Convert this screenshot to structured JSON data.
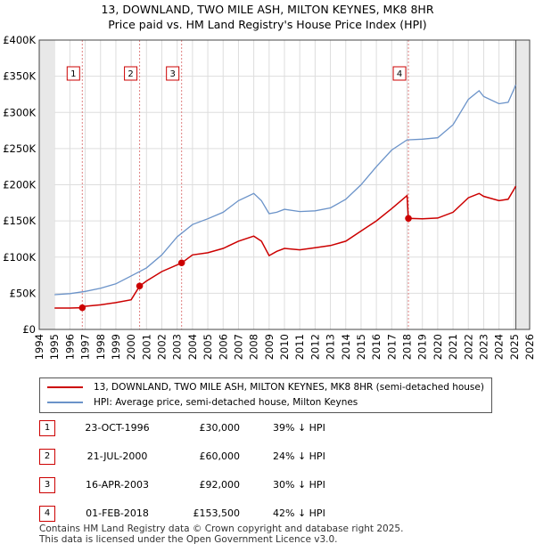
{
  "title_line1": "13, DOWNLAND, TWO MILE ASH, MILTON KEYNES, MK8 8HR",
  "title_line2": "Price paid vs. HM Land Registry's House Price Index (HPI)",
  "colors": {
    "property": "#cc0000",
    "hpi": "#6b93c9",
    "marker_border": "#cc0000"
  },
  "legend": {
    "property_label": "13, DOWNLAND, TWO MILE ASH, MILTON KEYNES, MK8 8HR (semi-detached house)",
    "hpi_label": "HPI: Average price, semi-detached house, Milton Keynes"
  },
  "sales": [
    {
      "num": "1",
      "date": "23-OCT-1996",
      "price": "£30,000",
      "hpi_diff": "39% ↓ HPI"
    },
    {
      "num": "2",
      "date": "21-JUL-2000",
      "price": "£60,000",
      "hpi_diff": "24% ↓ HPI"
    },
    {
      "num": "3",
      "date": "16-APR-2003",
      "price": "£92,000",
      "hpi_diff": "30% ↓ HPI"
    },
    {
      "num": "4",
      "date": "01-FEB-2018",
      "price": "£153,500",
      "hpi_diff": "42% ↓ HPI"
    }
  ],
  "footer": {
    "line1": "Contains HM Land Registry data © Crown copyright and database right 2025.",
    "line2": "This data is licensed under the Open Government Licence v3.0."
  },
  "chart_data": {
    "type": "line",
    "xlim": [
      1994,
      2026
    ],
    "ylim": [
      0,
      400000
    ],
    "x_ticks": [
      "1994",
      "1995",
      "1996",
      "1997",
      "1998",
      "1999",
      "2000",
      "2001",
      "2002",
      "2003",
      "2004",
      "2005",
      "2006",
      "2007",
      "2008",
      "2009",
      "2010",
      "2011",
      "2012",
      "2013",
      "2014",
      "2015",
      "2016",
      "2017",
      "2018",
      "2019",
      "2020",
      "2021",
      "2022",
      "2023",
      "2024",
      "2025",
      "2026"
    ],
    "y_ticks": [
      {
        "value": 0,
        "label": "£0"
      },
      {
        "value": 50000,
        "label": "£50K"
      },
      {
        "value": 100000,
        "label": "£100K"
      },
      {
        "value": 150000,
        "label": "£150K"
      },
      {
        "value": 200000,
        "label": "£200K"
      },
      {
        "value": 250000,
        "label": "£250K"
      },
      {
        "value": 300000,
        "label": "£300K"
      },
      {
        "value": 350000,
        "label": "£350K"
      },
      {
        "value": 400000,
        "label": "£400K"
      }
    ],
    "data_start_year": 1995,
    "data_end_year": 2025.1,
    "series": [
      {
        "name": "HPI: Average price, semi-detached house, Milton Keynes",
        "points": [
          [
            1995,
            48000
          ],
          [
            1996,
            49500
          ],
          [
            1997,
            52500
          ],
          [
            1998,
            57000
          ],
          [
            1999,
            63000
          ],
          [
            2000,
            74000
          ],
          [
            2001,
            85000
          ],
          [
            2002,
            103000
          ],
          [
            2003,
            128000
          ],
          [
            2004,
            145000
          ],
          [
            2005,
            153000
          ],
          [
            2006,
            162000
          ],
          [
            2007,
            178000
          ],
          [
            2008,
            188000
          ],
          [
            2008.5,
            178000
          ],
          [
            2009,
            160000
          ],
          [
            2009.5,
            162000
          ],
          [
            2010,
            166000
          ],
          [
            2011,
            163000
          ],
          [
            2012,
            164000
          ],
          [
            2013,
            168000
          ],
          [
            2014,
            180000
          ],
          [
            2015,
            200000
          ],
          [
            2016,
            225000
          ],
          [
            2017,
            248000
          ],
          [
            2018,
            262000
          ],
          [
            2019,
            263000
          ],
          [
            2020,
            265000
          ],
          [
            2021,
            283000
          ],
          [
            2022,
            318000
          ],
          [
            2022.7,
            330000
          ],
          [
            2023,
            322000
          ],
          [
            2024,
            312000
          ],
          [
            2024.6,
            314000
          ],
          [
            2025.1,
            338000
          ]
        ]
      },
      {
        "name": "13, DOWNLAND, TWO MILE ASH, MILTON KEYNES, MK8 8HR (semi-detached house)",
        "points": [
          [
            1995,
            29500
          ],
          [
            1996,
            29500
          ],
          [
            1996.81,
            30000
          ],
          [
            1997,
            32000
          ],
          [
            1998,
            34000
          ],
          [
            1999,
            37000
          ],
          [
            2000,
            41000
          ],
          [
            2000.55,
            60000
          ],
          [
            2001,
            67000
          ],
          [
            2002,
            80000
          ],
          [
            2003.29,
            92000
          ],
          [
            2004,
            103000
          ],
          [
            2005,
            106000
          ],
          [
            2006,
            112000
          ],
          [
            2007,
            122000
          ],
          [
            2008,
            129000
          ],
          [
            2008.5,
            122000
          ],
          [
            2009,
            102000
          ],
          [
            2009.5,
            108000
          ],
          [
            2010,
            112000
          ],
          [
            2011,
            110000
          ],
          [
            2012,
            113000
          ],
          [
            2013,
            116000
          ],
          [
            2014,
            122000
          ],
          [
            2015,
            136000
          ],
          [
            2016,
            150000
          ],
          [
            2017,
            167000
          ],
          [
            2018.0,
            185000
          ],
          [
            2018.09,
            153500
          ],
          [
            2019,
            153000
          ],
          [
            2020,
            154000
          ],
          [
            2021,
            162000
          ],
          [
            2022,
            182000
          ],
          [
            2022.7,
            188000
          ],
          [
            2023,
            184000
          ],
          [
            2024,
            178000
          ],
          [
            2024.6,
            180000
          ],
          [
            2025.1,
            198000
          ]
        ]
      }
    ],
    "sale_markers": [
      {
        "num": "1",
        "x": 1996.81,
        "y": 30000
      },
      {
        "num": "2",
        "x": 2000.55,
        "y": 60000
      },
      {
        "num": "3",
        "x": 2003.29,
        "y": 92000
      },
      {
        "num": "4",
        "x": 2018.09,
        "y": 153500
      }
    ]
  }
}
